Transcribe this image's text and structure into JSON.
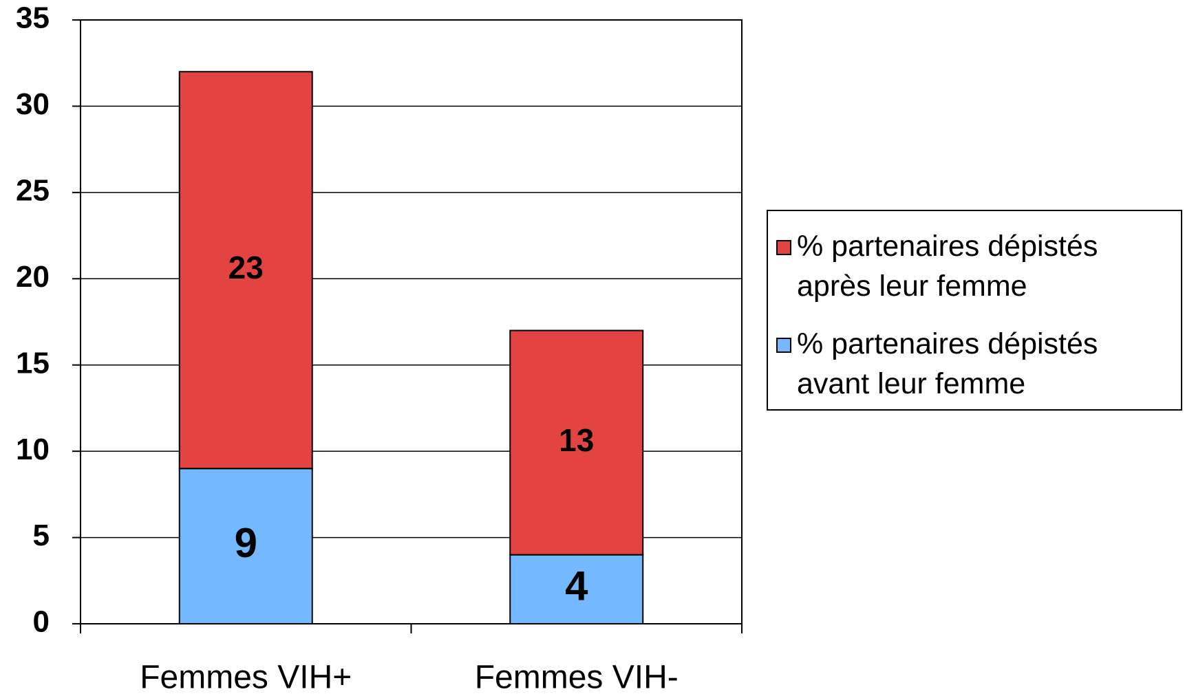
{
  "chart_data": {
    "type": "stacked_bar",
    "categories": [
      "Femmes VIH+",
      "Femmes VIH-"
    ],
    "series": [
      {
        "name": "% partenaires dépistés avant leur femme",
        "color": "#74b9ff",
        "values": [
          9,
          4
        ]
      },
      {
        "name": "% partenaires dépistés après leur femme",
        "color": "#e44441",
        "values": [
          23,
          13
        ]
      }
    ],
    "ylim": [
      0,
      35
    ],
    "yticks": [
      0,
      5,
      10,
      15,
      20,
      25,
      30,
      35
    ],
    "grid": true
  }
}
